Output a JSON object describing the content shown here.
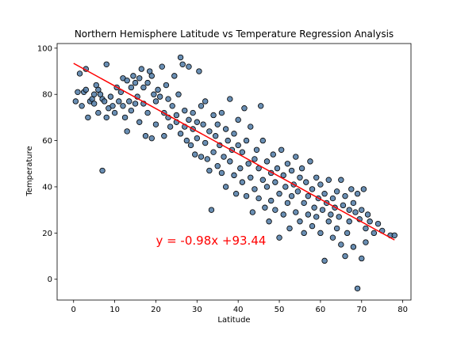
{
  "chart_data": {
    "type": "scatter",
    "title": "Northern Hemisphere Latitude vs Temperature Regression Analysis",
    "xlabel": "Latitude",
    "ylabel": "Temperature",
    "xlim": [
      -4,
      82
    ],
    "ylim": [
      -9,
      102
    ],
    "xticks": [
      0,
      10,
      20,
      30,
      40,
      50,
      60,
      70,
      80
    ],
    "yticks": [
      0,
      20,
      40,
      60,
      80,
      100
    ],
    "grid": false,
    "legend": "none",
    "annotation": {
      "text": "y = -0.98x +93.44",
      "x": 20,
      "y": 15,
      "color": "#ff0000"
    },
    "regression": {
      "slope": -0.98,
      "intercept": 93.44,
      "x_range": [
        0,
        78
      ],
      "color": "#ff0000"
    },
    "marker": {
      "fill": "#4f7aa6",
      "edge": "#000000"
    },
    "points": [
      [
        0.5,
        77
      ],
      [
        1,
        81
      ],
      [
        1.5,
        89
      ],
      [
        2,
        75
      ],
      [
        2.5,
        81
      ],
      [
        3,
        91
      ],
      [
        3,
        82
      ],
      [
        3.5,
        70
      ],
      [
        4,
        77
      ],
      [
        4.5,
        78
      ],
      [
        5,
        80
      ],
      [
        5,
        76
      ],
      [
        5.5,
        84
      ],
      [
        6,
        82
      ],
      [
        6,
        72
      ],
      [
        6.5,
        80
      ],
      [
        7,
        78
      ],
      [
        7,
        47
      ],
      [
        7.5,
        77
      ],
      [
        8,
        93
      ],
      [
        8,
        70
      ],
      [
        8.5,
        74
      ],
      [
        9,
        79
      ],
      [
        9.5,
        75
      ],
      [
        10,
        72
      ],
      [
        10.5,
        83
      ],
      [
        11,
        77
      ],
      [
        11.5,
        81
      ],
      [
        12,
        87
      ],
      [
        12,
        75
      ],
      [
        12.5,
        70
      ],
      [
        13,
        86
      ],
      [
        13,
        64
      ],
      [
        13.5,
        77
      ],
      [
        14,
        83
      ],
      [
        14,
        73
      ],
      [
        14.5,
        88
      ],
      [
        15,
        85
      ],
      [
        15,
        76
      ],
      [
        15.5,
        79
      ],
      [
        16,
        87
      ],
      [
        16,
        68
      ],
      [
        16.5,
        91
      ],
      [
        17,
        83
      ],
      [
        17,
        76
      ],
      [
        17.5,
        62
      ],
      [
        18,
        85
      ],
      [
        18,
        72
      ],
      [
        18.5,
        90
      ],
      [
        19,
        88
      ],
      [
        19,
        61
      ],
      [
        19.5,
        80
      ],
      [
        20,
        77
      ],
      [
        20,
        67
      ],
      [
        20.5,
        82
      ],
      [
        21,
        79
      ],
      [
        21.5,
        92
      ],
      [
        22,
        72
      ],
      [
        22,
        62
      ],
      [
        22.5,
        84
      ],
      [
        23,
        70
      ],
      [
        23,
        78
      ],
      [
        23.5,
        66
      ],
      [
        24,
        75
      ],
      [
        24.5,
        88
      ],
      [
        25,
        71
      ],
      [
        25,
        68
      ],
      [
        25.5,
        80
      ],
      [
        26,
        96
      ],
      [
        26,
        63
      ],
      [
        26.5,
        93
      ],
      [
        27,
        73
      ],
      [
        27,
        66
      ],
      [
        27.5,
        60
      ],
      [
        28,
        92
      ],
      [
        28,
        69
      ],
      [
        28.5,
        58
      ],
      [
        29,
        65
      ],
      [
        29,
        72
      ],
      [
        29.5,
        54
      ],
      [
        30,
        68
      ],
      [
        30,
        61
      ],
      [
        30.5,
        90
      ],
      [
        31,
        75
      ],
      [
        31,
        53
      ],
      [
        31.5,
        67
      ],
      [
        32,
        77
      ],
      [
        32,
        59
      ],
      [
        32.5,
        52
      ],
      [
        33,
        64
      ],
      [
        33,
        47
      ],
      [
        33.5,
        30
      ],
      [
        34,
        71
      ],
      [
        34,
        55
      ],
      [
        34.5,
        62
      ],
      [
        35,
        67
      ],
      [
        35,
        49
      ],
      [
        35.5,
        58
      ],
      [
        36,
        72
      ],
      [
        36,
        46
      ],
      [
        36.5,
        53
      ],
      [
        37,
        65
      ],
      [
        37,
        40
      ],
      [
        37.5,
        60
      ],
      [
        38,
        78
      ],
      [
        38,
        51
      ],
      [
        38.5,
        56
      ],
      [
        39,
        63
      ],
      [
        39,
        45
      ],
      [
        39.5,
        37
      ],
      [
        40,
        69
      ],
      [
        40,
        58
      ],
      [
        40.5,
        48
      ],
      [
        41,
        55
      ],
      [
        41,
        42
      ],
      [
        41.5,
        74
      ],
      [
        42,
        60
      ],
      [
        42,
        36
      ],
      [
        42.5,
        50
      ],
      [
        43,
        66
      ],
      [
        43,
        44
      ],
      [
        43.5,
        29
      ],
      [
        44,
        52
      ],
      [
        44,
        39
      ],
      [
        44.5,
        56
      ],
      [
        45,
        48
      ],
      [
        45,
        35
      ],
      [
        45.5,
        75
      ],
      [
        46,
        43
      ],
      [
        46,
        60
      ],
      [
        46.5,
        31
      ],
      [
        47,
        51
      ],
      [
        47,
        40
      ],
      [
        47.5,
        25
      ],
      [
        48,
        46
      ],
      [
        48,
        34
      ],
      [
        48.5,
        54
      ],
      [
        49,
        42
      ],
      [
        49,
        30
      ],
      [
        49.5,
        48
      ],
      [
        50,
        37
      ],
      [
        50,
        18
      ],
      [
        50.5,
        56
      ],
      [
        51,
        45
      ],
      [
        51,
        28
      ],
      [
        51.5,
        40
      ],
      [
        52,
        50
      ],
      [
        52,
        33
      ],
      [
        52.5,
        22
      ],
      [
        53,
        47
      ],
      [
        53,
        36
      ],
      [
        53.5,
        41
      ],
      [
        54,
        29
      ],
      [
        54,
        53
      ],
      [
        54.5,
        38
      ],
      [
        55,
        44
      ],
      [
        55,
        25
      ],
      [
        55.5,
        48
      ],
      [
        56,
        33
      ],
      [
        56,
        20
      ],
      [
        56.5,
        42
      ],
      [
        57,
        36
      ],
      [
        57,
        28
      ],
      [
        57.5,
        51
      ],
      [
        58,
        39
      ],
      [
        58,
        23
      ],
      [
        58.5,
        31
      ],
      [
        59,
        44
      ],
      [
        59,
        27
      ],
      [
        59.5,
        35
      ],
      [
        60,
        41
      ],
      [
        60,
        20
      ],
      [
        60.5,
        30
      ],
      [
        61,
        37
      ],
      [
        61,
        8
      ],
      [
        61.5,
        33
      ],
      [
        62,
        43
      ],
      [
        62,
        25
      ],
      [
        62.5,
        28
      ],
      [
        63,
        35
      ],
      [
        63,
        18
      ],
      [
        63.5,
        31
      ],
      [
        64,
        38
      ],
      [
        64,
        22
      ],
      [
        64.5,
        27
      ],
      [
        65,
        43
      ],
      [
        65,
        15
      ],
      [
        65.5,
        32
      ],
      [
        66,
        36
      ],
      [
        66,
        10
      ],
      [
        66.5,
        20
      ],
      [
        67,
        30
      ],
      [
        67,
        25
      ],
      [
        67.5,
        39
      ],
      [
        68,
        33
      ],
      [
        68,
        14
      ],
      [
        68.5,
        29
      ],
      [
        69,
        -4
      ],
      [
        69,
        37
      ],
      [
        69.5,
        26
      ],
      [
        70,
        30
      ],
      [
        70,
        9
      ],
      [
        70.5,
        39
      ],
      [
        71,
        22
      ],
      [
        71,
        16
      ],
      [
        71.5,
        28
      ],
      [
        72,
        25
      ],
      [
        73,
        20
      ],
      [
        74,
        24
      ],
      [
        75,
        21
      ],
      [
        77,
        19
      ],
      [
        78,
        19
      ]
    ]
  }
}
